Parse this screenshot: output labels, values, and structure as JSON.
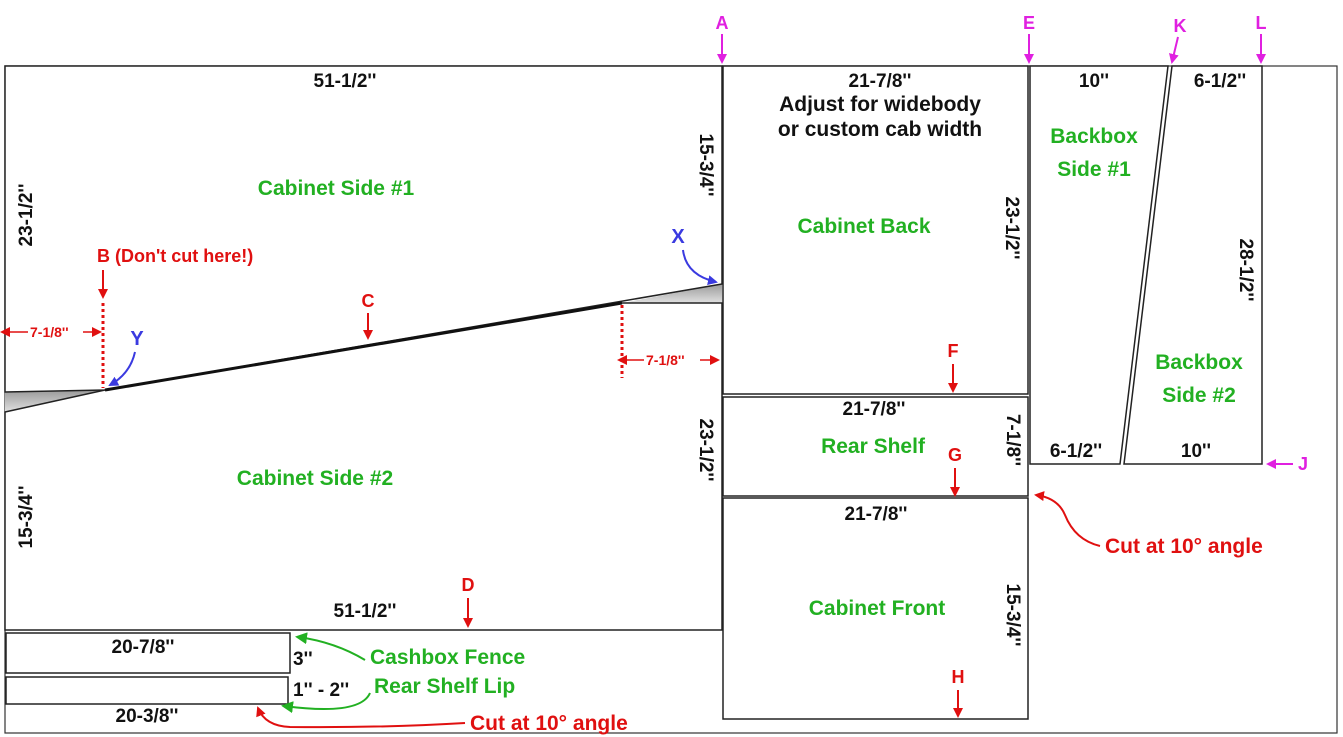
{
  "panels": {
    "side1": {
      "label": "Cabinet Side #1",
      "top": "51-1/2''",
      "left": "23-1/2''",
      "right": "15-3/4''"
    },
    "side2": {
      "label": "Cabinet Side #2",
      "bottom": "51-1/2''",
      "left": "15-3/4''",
      "right": "23-1/2''"
    },
    "back": {
      "label": "Cabinet Back",
      "top": "21-7/8''",
      "note1": "Adjust for widebody",
      "note2": "or custom cab width",
      "right": "23-1/2''"
    },
    "shelf": {
      "label": "Rear Shelf",
      "top": "21-7/8''",
      "right": "7-1/8''"
    },
    "front": {
      "label": "Cabinet Front",
      "top": "21-7/8''",
      "right": "15-3/4''"
    },
    "backbox1": {
      "label1": "Backbox",
      "label2": "Side #1",
      "top": "10''",
      "bottom": "6-1/2''"
    },
    "backbox2": {
      "label1": "Backbox",
      "label2": "Side #2",
      "top": "6-1/2''",
      "bottom": "10''",
      "right": "28-1/2''"
    },
    "fence": {
      "top": "20-7/8''",
      "right": "3''",
      "label": "Cashbox Fence"
    },
    "lip": {
      "bottom": "20-3/8''",
      "right": "1'' - 2''",
      "label": "Rear Shelf Lip"
    }
  },
  "markers": {
    "A": "A",
    "E": "E",
    "K": "K",
    "L": "L",
    "J": "J",
    "B": "B (Don't cut here!)",
    "C": "C",
    "D": "D",
    "F": "F",
    "G": "G",
    "H": "H",
    "X": "X",
    "Y": "Y"
  },
  "offsets": {
    "left": "7-1/8''",
    "right": "7-1/8''"
  },
  "notes": {
    "cut_right": "Cut at 10° angle",
    "cut_bottom": "Cut at 10° angle"
  },
  "colors": {
    "part_label": "#22b022",
    "callout": "#e01010",
    "reference": "#e020e0",
    "point": "#3a3ae0"
  }
}
